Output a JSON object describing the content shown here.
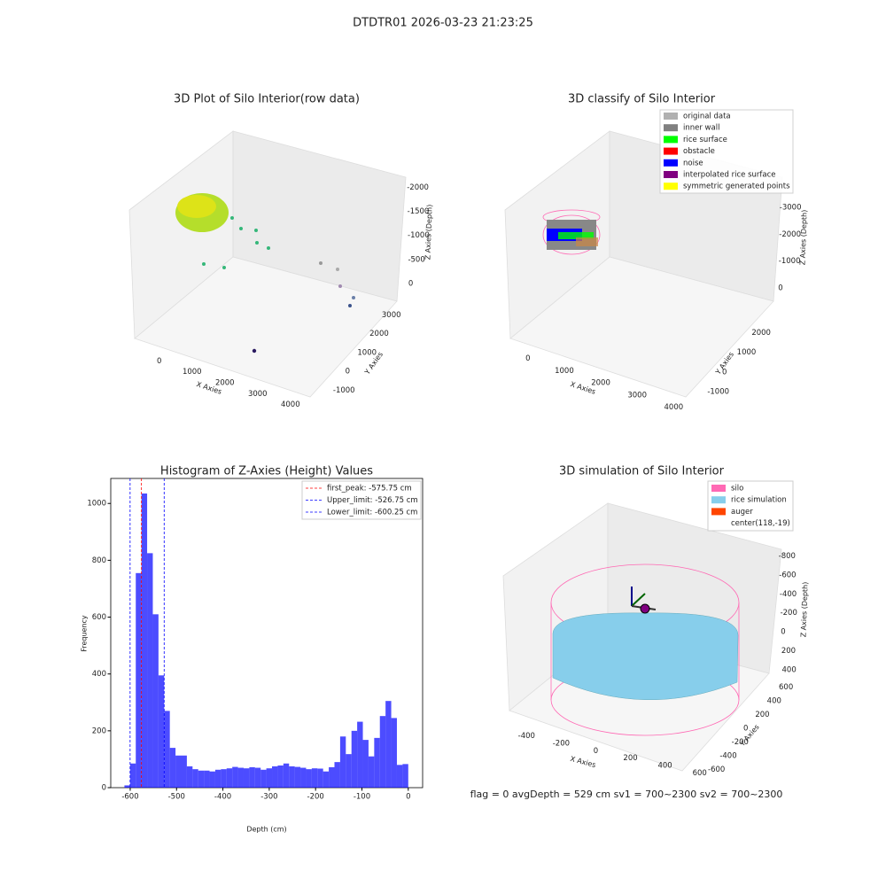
{
  "suptitle": "DTDTR01 2026-03-23 21:23:25",
  "chart_data": [
    {
      "type": "scatter3d",
      "title": "3D Plot of Silo Interior(row data)",
      "xlabel": "X Axies",
      "ylabel": "Y Axies",
      "zlabel": "Z Axies (Depth)",
      "xlim": [
        -750,
        4600
      ],
      "xticks": [
        0,
        1000,
        2000,
        3000,
        4000
      ],
      "ylim": [
        -1500,
        3300
      ],
      "yticks": [
        -1000,
        0,
        1000,
        2000,
        3000
      ],
      "zlim": [
        -2300,
        200
      ],
      "zticks": [
        0,
        -500,
        -1000,
        -1500,
        -2000
      ]
    },
    {
      "type": "scatter3d",
      "title": "3D classify of Silo Interior",
      "xlabel": "X Axies",
      "ylabel": "Y Axies",
      "zlabel": "Z Axies (Depth)",
      "xlim": [
        -700,
        4600
      ],
      "xticks": [
        0,
        1000,
        2000,
        3000,
        4000
      ],
      "ylim": [
        -1500,
        2700
      ],
      "yticks": [
        -1000,
        0,
        1000,
        2000
      ],
      "zlim": [
        -3400,
        600
      ],
      "zticks": [
        0,
        -1000,
        -2000,
        -3000
      ],
      "series": [
        {
          "name": "original data",
          "color": "#b0b0b0"
        },
        {
          "name": "inner wall",
          "color": "#808080"
        },
        {
          "name": "rice surface",
          "color": "#00ff00"
        },
        {
          "name": "obstacle",
          "color": "#ff0000"
        },
        {
          "name": "noise",
          "color": "#0000ff"
        },
        {
          "name": "interpolated rice surface",
          "color": "#800080"
        },
        {
          "name": "symmetric generated points",
          "color": "#ffff00"
        }
      ]
    },
    {
      "type": "histogram",
      "title": "Histogram of Z-Axies (Height) Values",
      "xlabel": "Depth (cm)",
      "ylabel": "Frequency",
      "color": "#0000ff",
      "bins": [
        -612.5,
        -600.25,
        -588,
        -575.75,
        -563.5,
        -551.25,
        -539,
        -526.75,
        -514.5,
        -502.25,
        -490,
        -477.75,
        -465.5,
        -453.25,
        -441,
        -428.75,
        -416.5,
        -404.25,
        -392,
        -379.75,
        -367.5,
        -355.25,
        -343,
        -330.75,
        -318.5,
        -306.25,
        -294,
        -281.75,
        -269.5,
        -257.25,
        -245,
        -232.75,
        -220.5,
        -208.25,
        -196,
        -183.75,
        -171.5,
        -159.25,
        -147,
        -134.75,
        -122.5,
        -110.25,
        -98,
        -85.75,
        -73.5,
        -61.25,
        -49,
        -36.75,
        -24.5,
        -12.25,
        0
      ],
      "values": [
        8,
        85,
        755,
        1035,
        825,
        610,
        395,
        270,
        140,
        113,
        113,
        75,
        65,
        60,
        60,
        57,
        63,
        65,
        68,
        73,
        70,
        68,
        72,
        70,
        63,
        68,
        75,
        78,
        85,
        75,
        73,
        70,
        65,
        68,
        67,
        57,
        72,
        90,
        180,
        118,
        200,
        232,
        168,
        110,
        175,
        252,
        305,
        245,
        80,
        83
      ],
      "xlim": [
        -642,
        31
      ],
      "xticks": [
        -600,
        -500,
        -400,
        -300,
        -200,
        -100,
        0
      ],
      "ylim": [
        0,
        1088
      ],
      "yticks": [
        0,
        200,
        400,
        600,
        800,
        1000
      ],
      "lines": [
        {
          "name": "first_peak: -575.75 cm",
          "value": -575.75,
          "color": "#ff0000"
        },
        {
          "name": "Upper_limit: -526.75 cm",
          "value": -526.75,
          "color": "#0000ff"
        },
        {
          "name": "Lower_limit: -600.25 cm",
          "value": -600.25,
          "color": "#0000ff"
        }
      ]
    },
    {
      "type": "wireframe3d",
      "title": "3D simulation of Silo Interior",
      "xlabel": "X Axies",
      "ylabel": "Y Axies",
      "zlabel": "Z Axies (Depth)",
      "xlim": [
        -550,
        750
      ],
      "xticks": [
        -400,
        -200,
        0,
        200,
        400,
        600
      ],
      "ylim": [
        -750,
        750
      ],
      "yticks": [
        -600,
        -400,
        -200,
        0,
        200,
        400,
        600
      ],
      "zlim": [
        -1000,
        550
      ],
      "zticks": [
        400,
        200,
        0,
        -200,
        -400,
        -600,
        -800
      ],
      "series": [
        {
          "name": "silo",
          "color": "#ff69b4"
        },
        {
          "name": "rice simulation",
          "color": "#87ceeb"
        },
        {
          "name": "auger",
          "color": "#ff4500"
        },
        {
          "name": "center(118,-19)",
          "color": null
        }
      ]
    }
  ],
  "status": "flag = 0     avgDepth = 529 cm  sv1 = 700~2300  sv2 = 700~2300"
}
